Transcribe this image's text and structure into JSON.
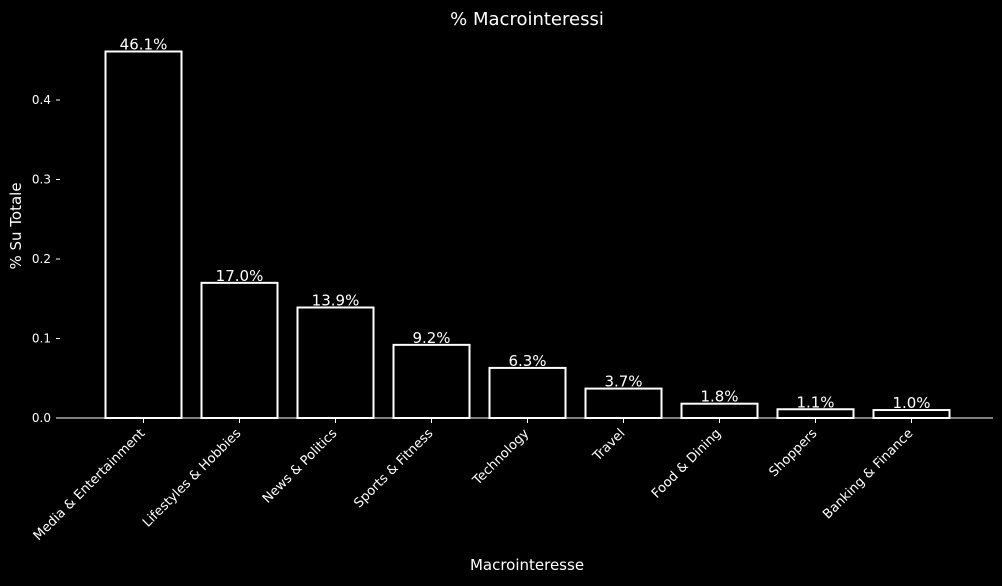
{
  "chart_data": {
    "type": "bar",
    "title": "% Macrointeressi",
    "xlabel": "Macrointeresse",
    "ylabel": "% Su Totale",
    "categories": [
      "Media & Entertainment",
      "Lifestyles & Hobbies",
      "News & Politics",
      "Sports & Fitness",
      "Technology",
      "Travel",
      "Food & Dining",
      "Shoppers",
      "Banking & Finance"
    ],
    "values": [
      0.461,
      0.17,
      0.139,
      0.092,
      0.063,
      0.037,
      0.018,
      0.011,
      0.01
    ],
    "data_labels": [
      "46.1%",
      "17.0%",
      "13.9%",
      "9.2%",
      "6.3%",
      "3.7%",
      "1.8%",
      "1.1%",
      "1.0%"
    ],
    "yticks": [
      0.0,
      0.1,
      0.2,
      0.3,
      0.4
    ],
    "ytick_labels": [
      "0.0",
      "0.1",
      "0.2",
      "0.3",
      "0.4"
    ],
    "ylim": [
      0,
      0.484
    ],
    "grid": false,
    "legend": "none",
    "colors": {
      "background": "#000000",
      "bar_fill": "#000000",
      "bar_edge": "#ffffff",
      "text": "#ffffff"
    }
  }
}
